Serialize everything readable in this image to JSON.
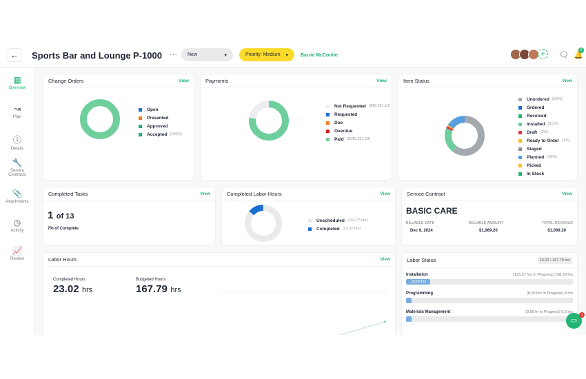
{
  "header": {
    "title": "Sports Bar and Lounge",
    "project_number": "P-1000",
    "status": "New",
    "priority": "Priority: Medium",
    "user": "Barrie McCorkle",
    "notification_count": "9"
  },
  "sidebar": {
    "items": [
      {
        "label": "Overview",
        "icon": "grid-icon"
      },
      {
        "label": "Plan",
        "icon": "route-icon"
      },
      {
        "label": "Details",
        "icon": "info-icon"
      },
      {
        "label": "Service Contracts",
        "icon": "wrench-icon"
      },
      {
        "label": "Attachments",
        "icon": "paperclip-icon"
      },
      {
        "label": "Activity",
        "icon": "clock-icon"
      },
      {
        "label": "Review",
        "icon": "chart-icon"
      }
    ]
  },
  "view_label": "View",
  "change_orders": {
    "title": "Change Orders",
    "legend": [
      {
        "label": "Open",
        "value": "",
        "pct": 0,
        "color": "#1a6fd1"
      },
      {
        "label": "Presented",
        "value": "",
        "pct": 0,
        "color": "#f47b20"
      },
      {
        "label": "Approved",
        "value": "",
        "pct": 0,
        "color": "#1fb36b"
      },
      {
        "label": "Accepted",
        "value": "(100%)",
        "pct": 100,
        "color": "#1fb36b"
      }
    ],
    "ring_color": "#6fcf9c"
  },
  "payments": {
    "title": "Payments",
    "legend": [
      {
        "label": "Not Requested",
        "value": "($42,261.10)",
        "pct": 22.8,
        "color": "#eceeef"
      },
      {
        "label": "Requested",
        "value": "",
        "pct": 0,
        "color": "#1a6fd1"
      },
      {
        "label": "Due",
        "value": "",
        "pct": 0,
        "color": "#f47b20"
      },
      {
        "label": "Overdue",
        "value": "",
        "pct": 0,
        "color": "#d62020"
      },
      {
        "label": "Paid",
        "value": "($143,251.23)",
        "pct": 77.2,
        "color": "#6fcf9c"
      }
    ]
  },
  "item_status": {
    "title": "Item Status",
    "legend": [
      {
        "label": "Unordered",
        "value": "(60%)",
        "pct": 60,
        "color": "#a4a9af"
      },
      {
        "label": "Ordered",
        "value": "",
        "pct": 0,
        "color": "#1a6fd1"
      },
      {
        "label": "Received",
        "value": "",
        "pct": 0,
        "color": "#1fb36b"
      },
      {
        "label": "Installed",
        "value": "(21%)",
        "pct": 21,
        "color": "#6fcf9c"
      },
      {
        "label": "Draft",
        "value": "(2%)",
        "pct": 2,
        "color": "#e03a4a"
      },
      {
        "label": "Ready to Order",
        "value": "(1%)",
        "pct": 1,
        "color": "#fbbf24"
      },
      {
        "label": "Staged",
        "value": "",
        "pct": 0,
        "color": "#8a8f95"
      },
      {
        "label": "Planned",
        "value": "(16%)",
        "pct": 16,
        "color": "#5a9edf"
      },
      {
        "label": "Picked",
        "value": "",
        "pct": 0,
        "color": "#fbbf24"
      },
      {
        "label": "In Stock",
        "value": "",
        "pct": 0,
        "color": "#1fb36b"
      }
    ]
  },
  "completed_tasks": {
    "title": "Completed Tasks",
    "count": "1",
    "of_total": "of 13",
    "percent_label": "7% of Complete"
  },
  "completed_labor": {
    "title": "Completed Labor Hours",
    "legend": [
      {
        "label": "Unscheduled",
        "value": "(144.77 hrs)",
        "pct": 86.3,
        "color": "#e8eaec"
      },
      {
        "label": "Completed",
        "value": "(23.02 hrs)",
        "pct": 13.7,
        "color": "#1a6fd1"
      }
    ]
  },
  "service_contract": {
    "title": "Service Contract",
    "plan": "BASIC CARE",
    "columns": [
      {
        "label": "BILLABLE DATE",
        "value": "Dec 9, 2024"
      },
      {
        "label": "BILLABLE AMOUNT",
        "value": "$1,069.20"
      },
      {
        "label": "TOTAL REVENUE",
        "value": "$1,069.20"
      }
    ]
  },
  "labor_hours": {
    "title": "Labor Hours",
    "completed_label": "Completed Hours",
    "completed_value": "23.02",
    "budgeted_label": "Budgeted Hours",
    "budgeted_value": "167.79",
    "unit": "hrs"
  },
  "labor_status": {
    "title": "Labor Status",
    "total": "23.02 / 167.79 hrs",
    "rows": [
      {
        "label": "Installation",
        "detail": "(135.27 hrs In Progress) 158.29 hrs",
        "bar_label": "23.02 hrs",
        "progress": 0.145
      },
      {
        "label": "Programming",
        "detail": "(8.00 hrs In Progress) 8 hrs",
        "bar_label": "0",
        "progress": 0
      },
      {
        "label": "Materials Management",
        "detail": "(0.50 hr In Progress) 0.5 hrs",
        "bar_label": "0",
        "progress": 0
      }
    ]
  },
  "chat_badge": "1"
}
